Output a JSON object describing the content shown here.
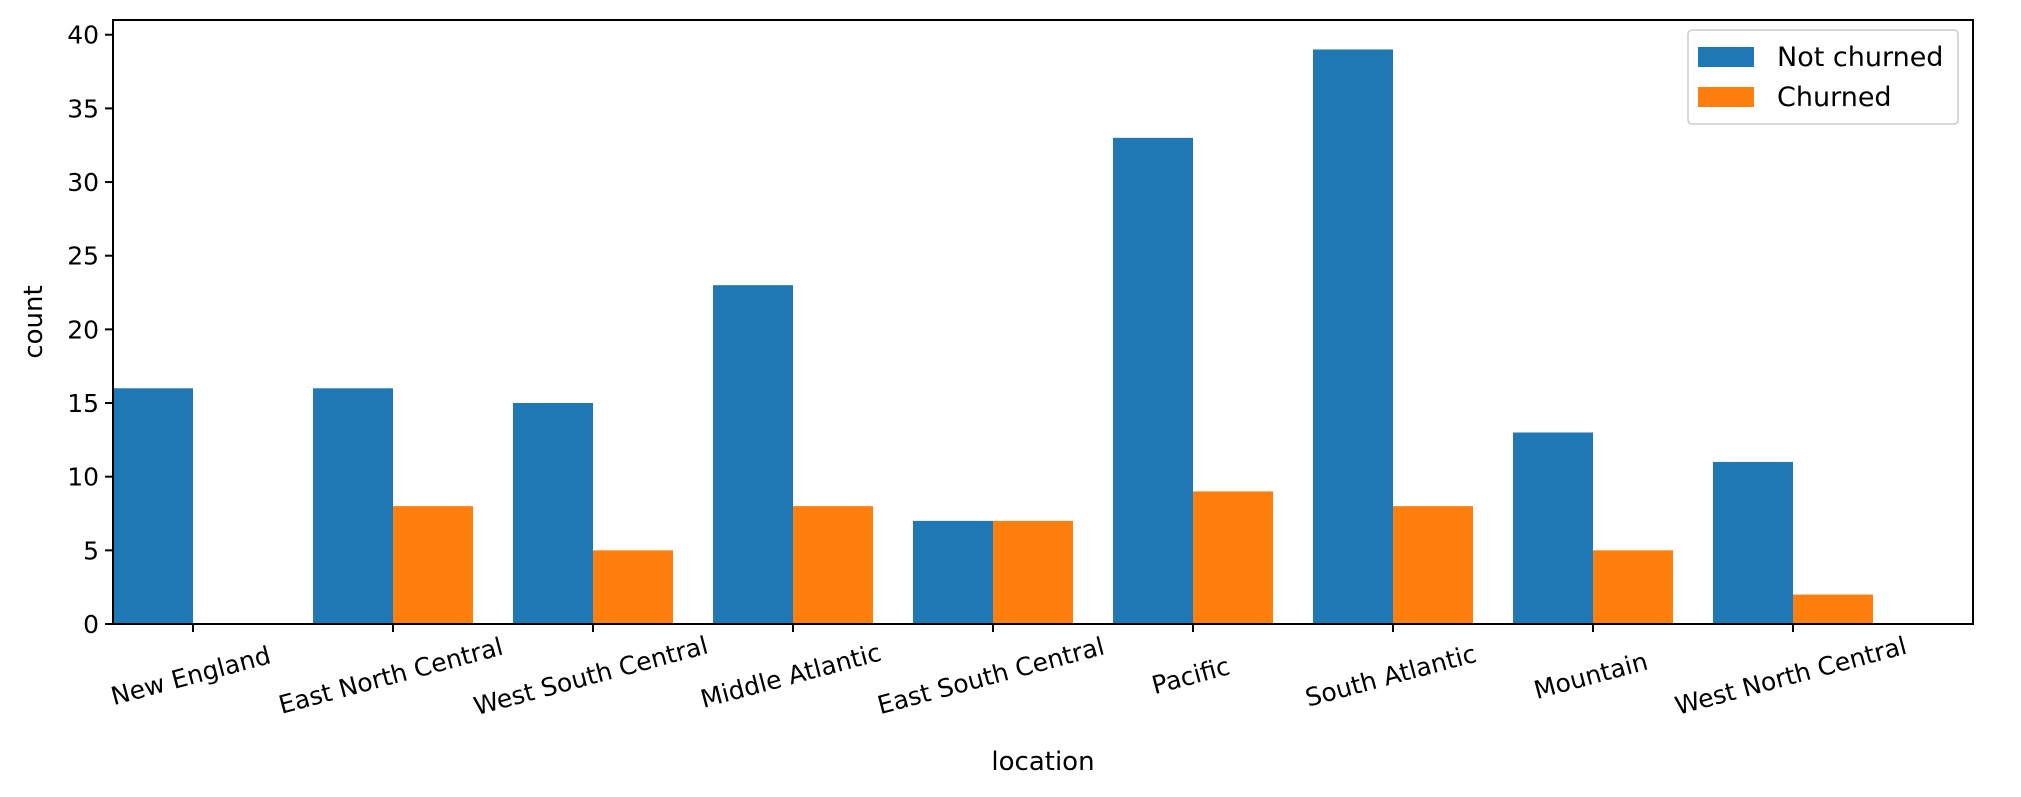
{
  "chart_data": {
    "type": "bar",
    "xlabel": "location",
    "ylabel": "count",
    "ylim": [
      0,
      41
    ],
    "yticks": [
      0,
      5,
      10,
      15,
      20,
      25,
      30,
      35,
      40
    ],
    "categories": [
      "New England",
      "East North Central",
      "West South Central",
      "Middle Atlantic",
      "East South Central",
      "Pacific",
      "South Atlantic",
      "Mountain",
      "West North Central"
    ],
    "series": [
      {
        "name": "Not churned",
        "color": "#1f77b4",
        "values": [
          16,
          16,
          15,
          23,
          7,
          33,
          39,
          13,
          11
        ]
      },
      {
        "name": "Churned",
        "color": "#ff7f0e",
        "values": [
          0,
          8,
          5,
          8,
          7,
          9,
          8,
          5,
          2
        ]
      }
    ],
    "legend_position": "top-right",
    "grid": false
  }
}
